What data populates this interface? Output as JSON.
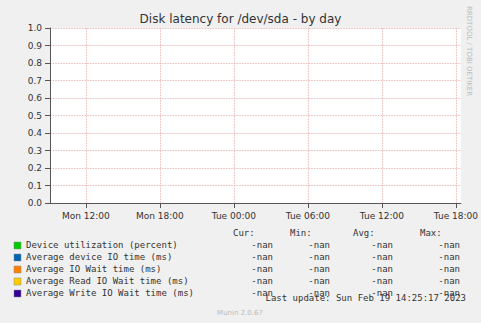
{
  "chart_data": {
    "type": "line",
    "title": "Disk latency for /dev/sda - by day",
    "x": [],
    "xlim": [
      9.1,
      42.4
    ],
    "xticks": [
      {
        "value": 12,
        "label": "Mon 12:00"
      },
      {
        "value": 18,
        "label": "Mon 18:00"
      },
      {
        "value": 24,
        "label": "Tue 00:00"
      },
      {
        "value": 30,
        "label": "Tue 06:00"
      },
      {
        "value": 36,
        "label": "Tue 12:00"
      },
      {
        "value": 42,
        "label": "Tue 18:00"
      }
    ],
    "ylim": [
      0,
      1
    ],
    "yticks": [
      {
        "value": 0,
        "label": "0.0"
      },
      {
        "value": 0.1,
        "label": "0.1"
      },
      {
        "value": 0.2,
        "label": "0.2"
      },
      {
        "value": 0.3,
        "label": "0.3"
      },
      {
        "value": 0.4,
        "label": "0.4"
      },
      {
        "value": 0.5,
        "label": "0.5"
      },
      {
        "value": 0.6,
        "label": "0.6"
      },
      {
        "value": 0.7,
        "label": "0.7"
      },
      {
        "value": 0.8,
        "label": "0.8"
      },
      {
        "value": 0.9,
        "label": "0.9"
      },
      {
        "value": 1,
        "label": "1.0"
      }
    ],
    "grid": true,
    "stats_columns": [
      "Cur:",
      "Min:",
      "Avg:",
      "Max:"
    ],
    "series": [
      {
        "name": "Device utilization (percent)",
        "color": "#00cc00",
        "values": [],
        "stats": [
          "-nan",
          "-nan",
          "-nan",
          "-nan"
        ]
      },
      {
        "name": "Average device IO time (ms)",
        "color": "#0066b3",
        "values": [],
        "stats": [
          "-nan",
          "-nan",
          "-nan",
          "-nan"
        ]
      },
      {
        "name": "Average IO Wait time (ms)",
        "color": "#ff8000",
        "values": [],
        "stats": [
          "-nan",
          "-nan",
          "-nan",
          "-nan"
        ]
      },
      {
        "name": "Average Read IO Wait time (ms)",
        "color": "#ffcc00",
        "values": [],
        "stats": [
          "-nan",
          "-nan",
          "-nan",
          "-nan"
        ]
      },
      {
        "name": "Average Write IO Wait time (ms)",
        "color": "#330099",
        "values": [],
        "stats": [
          "-nan",
          "-nan",
          "-nan",
          "-nan"
        ]
      }
    ],
    "last_update": "Last update: Sun Feb 19 14:25:17 2023",
    "footer": "Munin 2.0.67",
    "side_text": "RRDTOOL / TOBI OETIKER"
  }
}
